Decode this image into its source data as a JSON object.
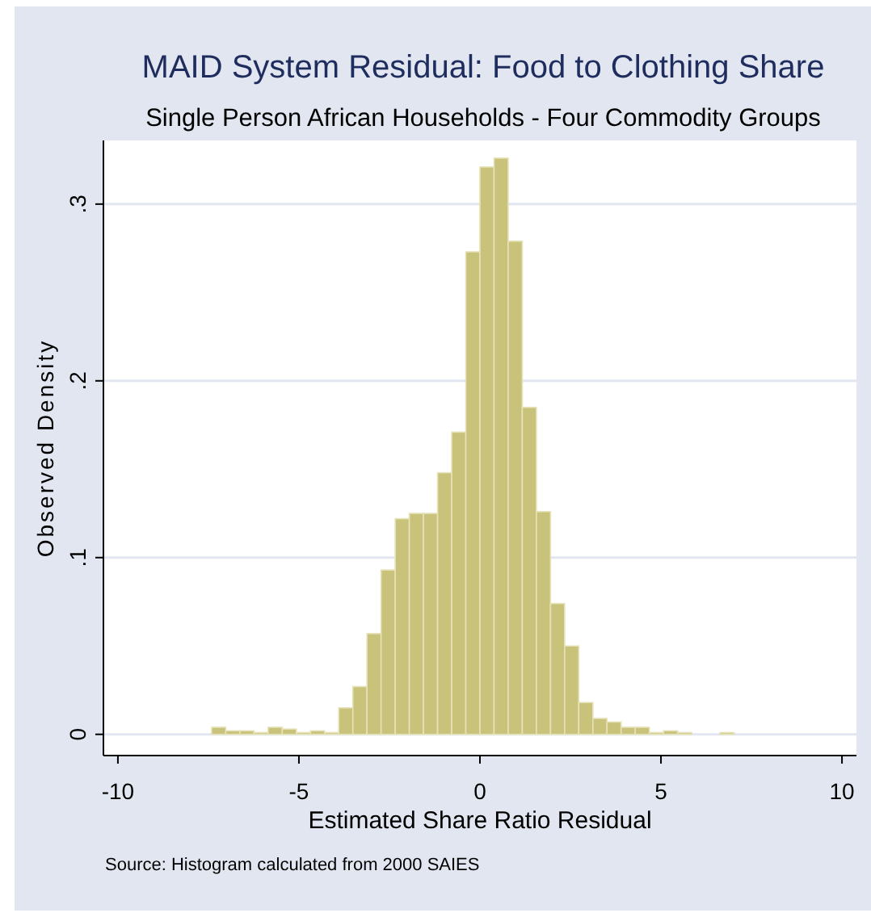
{
  "chart_data": {
    "type": "histogram",
    "title": "MAID System Residual: Food to Clothing Share",
    "subtitle": "Single Person African Households - Four Commodity Groups",
    "xlabel": "Estimated Share Ratio Residual",
    "ylabel": "Observed Density",
    "annotations": [
      "Source: Histogram calculated from 2000 SAIES"
    ],
    "bins": [
      -7.41,
      -7.02,
      -6.63,
      -6.24,
      -5.85,
      -5.46,
      -5.07,
      -4.68,
      -4.29,
      -3.9,
      -3.51,
      -3.12,
      -2.73,
      -2.34,
      -1.95,
      -1.56,
      -1.17,
      -0.78,
      -0.39,
      0,
      0.39,
      0.78,
      1.17,
      1.56,
      1.95,
      2.34,
      2.73,
      3.12,
      3.51,
      3.9,
      4.29,
      4.68,
      5.07,
      5.46,
      5.85,
      6.24,
      6.63,
      7.02
    ],
    "values": [
      0.004,
      0.002,
      0.002,
      0.001,
      0.004,
      0.003,
      0.001,
      0.002,
      0.001,
      0.015,
      0.027,
      0.057,
      0.093,
      0.122,
      0.125,
      0.125,
      0.148,
      0.171,
      0.273,
      0.321,
      0.326,
      0.279,
      0.185,
      0.126,
      0.074,
      0.05,
      0.018,
      0.009,
      0.007,
      0.004,
      0.004,
      0.001,
      0.002,
      0.001,
      0,
      0,
      0.001
    ],
    "color": "#c9c27a",
    "xlim": [
      -10.4,
      10.4
    ],
    "xticks": [
      -10,
      -5,
      0,
      5,
      10
    ],
    "ylim": [
      -0.012,
      0.336
    ],
    "yticks": [
      0,
      {
        "value": 0.1,
        "label": ".1"
      },
      {
        "value": 0.2,
        "label": ".2"
      },
      {
        "value": 0.3,
        "label": ".3"
      }
    ],
    "grid": "y"
  }
}
